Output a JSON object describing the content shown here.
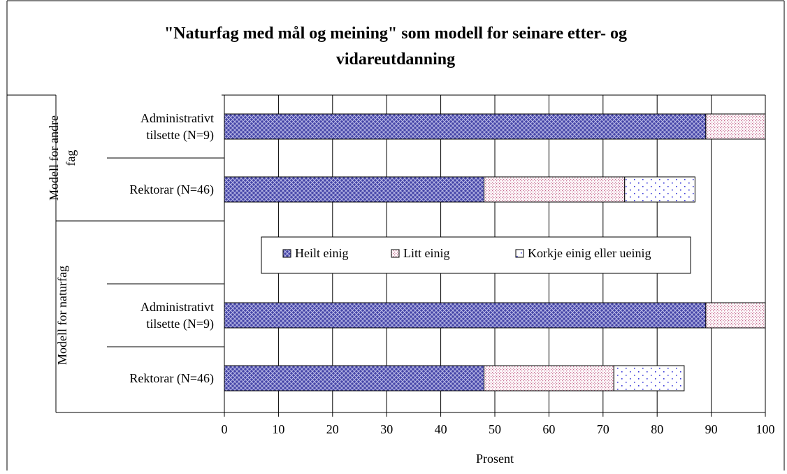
{
  "chart_data": {
    "type": "bar",
    "orientation": "horizontal",
    "stacked": true,
    "title": "\"Naturfag med mål og meining\" som modell for seinare etter- og vidareutdanning",
    "title_lines": [
      "\"Naturfag med mål og meining\" som modell for seinare etter- og",
      "vidareutdanning"
    ],
    "xlabel": "Prosent",
    "ylabel": "",
    "xlim": [
      0,
      100
    ],
    "xticks": [
      0,
      10,
      20,
      30,
      40,
      50,
      60,
      70,
      80,
      90,
      100
    ],
    "grid": true,
    "legend_position": "inside-center",
    "groups": [
      {
        "label": "Modell for andre fag",
        "label_lines": [
          "Modell for andre",
          "fag"
        ],
        "categories": [
          {
            "label_lines": [
              "Administrativt",
              "tilsette (N=9)"
            ],
            "label": "Administrativt tilsette (N=9)"
          },
          {
            "label_lines": [
              "Rektorar (N=46)"
            ],
            "label": "Rektorar (N=46)"
          }
        ]
      },
      {
        "label": "Modell for naturfag",
        "label_lines": [
          "Modell for naturfag"
        ],
        "categories": [
          {
            "label_lines": [
              "Administrativt",
              "tilsette (N=9)"
            ],
            "label": "Administrativt tilsette (N=9)"
          },
          {
            "label_lines": [
              "Rektorar (N=46)"
            ],
            "label": "Rektorar (N=46)"
          }
        ]
      }
    ],
    "categories": [
      "Modell for andre fag – Administrativt tilsette (N=9)",
      "Modell for andre fag – Rektorar (N=46)",
      "Modell for naturfag – Administrativt tilsette (N=9)",
      "Modell for naturfag – Rektorar (N=46)"
    ],
    "series": [
      {
        "name": "Heilt einig",
        "values": [
          89,
          48,
          89,
          48
        ],
        "color": "#3f3fa5",
        "pattern": "crosshatch"
      },
      {
        "name": "Litt einig",
        "values": [
          11,
          26,
          11,
          24
        ],
        "color": "#cc7d9c",
        "pattern": "dots-fine"
      },
      {
        "name": "Korkje einig eller ueinig",
        "values": [
          0,
          13,
          0,
          13
        ],
        "color": "#3b3bd6",
        "pattern": "dots-sparse"
      }
    ]
  }
}
